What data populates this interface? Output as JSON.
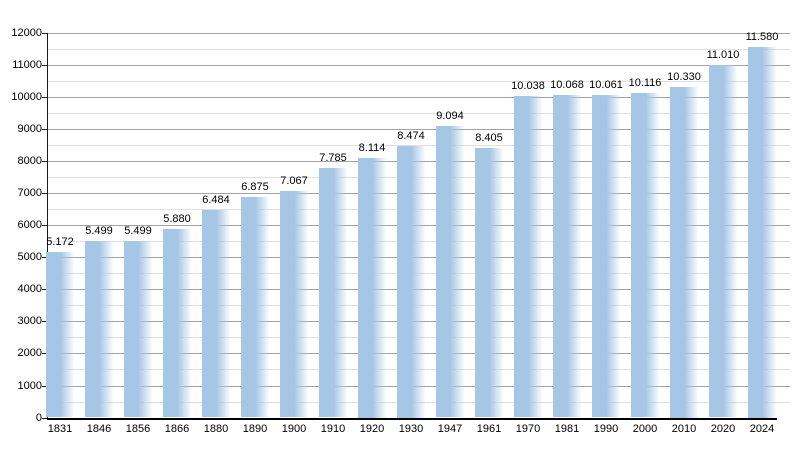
{
  "chart_data": {
    "type": "bar",
    "title": "",
    "xlabel": "",
    "ylabel": "",
    "categories": [
      "1831",
      "1846",
      "1856",
      "1866",
      "1880",
      "1890",
      "1900",
      "1910",
      "1920",
      "1930",
      "1947",
      "1961",
      "1970",
      "1981",
      "1990",
      "2000",
      "2010",
      "2020",
      "2024"
    ],
    "values": [
      5172,
      5499,
      5499,
      5880,
      6484,
      6875,
      7067,
      7785,
      8114,
      8474,
      9094,
      8405,
      10038,
      10068,
      10061,
      10116,
      10330,
      11010,
      11580
    ],
    "value_labels": [
      "5.172",
      "5.499",
      "5.499",
      "5.880",
      "6.484",
      "6.875",
      "7.067",
      "7.785",
      "8.114",
      "8.474",
      "9.094",
      "8.405",
      "10.038",
      "10.068",
      "10.061",
      "10.116",
      "10.330",
      "11.010",
      "11.580"
    ],
    "ytick_labels": [
      "0",
      "1000",
      "2000",
      "3000",
      "4000",
      "5000",
      "6000",
      "7000",
      "8000",
      "9000",
      "10000",
      "11000",
      "12000"
    ],
    "ylim": [
      0,
      12000
    ],
    "ytick_step": 1000,
    "minor_grid_step": 500,
    "grid": true,
    "legend_position": "none",
    "colors": {
      "bar": "#a6c6e5",
      "grid_major": "#a3a3a3",
      "grid_minor": "#e0e0e0",
      "axis": "#000000",
      "text": "#000000",
      "background": "#ffffff"
    }
  }
}
